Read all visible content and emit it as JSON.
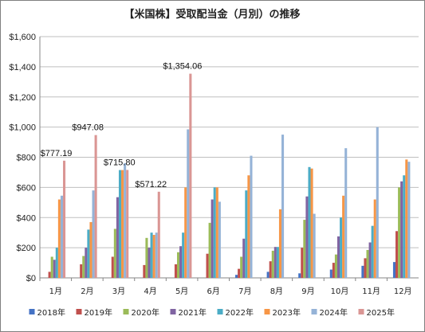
{
  "chart_data": {
    "type": "bar",
    "title": "【米国株】受取配当金（月別）の推移",
    "xlabel": "",
    "ylabel": "",
    "ylim": [
      0,
      1600
    ],
    "yticks": [
      0,
      200,
      400,
      600,
      800,
      1000,
      1200,
      1400,
      1600
    ],
    "ytick_labels": [
      "$0",
      "$200",
      "$400",
      "$600",
      "$800",
      "$1,000",
      "$1,200",
      "$1,400",
      "$1,600"
    ],
    "grid": true,
    "legend_position": "bottom",
    "categories": [
      "1月",
      "2月",
      "3月",
      "4月",
      "5月",
      "6月",
      "7月",
      "8月",
      "9月",
      "10月",
      "11月",
      "12月"
    ],
    "series": [
      {
        "name": "2018年",
        "color": "#4472C4",
        "values": [
          0,
          0,
          0,
          0,
          0,
          0,
          20,
          40,
          30,
          55,
          80,
          105
        ]
      },
      {
        "name": "2019年",
        "color": "#C0504D",
        "values": [
          40,
          90,
          140,
          85,
          90,
          160,
          60,
          110,
          200,
          100,
          130,
          310
        ]
      },
      {
        "name": "2020年",
        "color": "#9BBB59",
        "values": [
          140,
          145,
          325,
          265,
          170,
          365,
          140,
          180,
          385,
          155,
          185,
          600
        ]
      },
      {
        "name": "2021年",
        "color": "#8064A2",
        "values": [
          120,
          200,
          535,
          200,
          210,
          520,
          260,
          205,
          540,
          275,
          235,
          640
        ]
      },
      {
        "name": "2022年",
        "color": "#4BACC6",
        "values": [
          200,
          320,
          715,
          300,
          300,
          600,
          580,
          205,
          735,
          400,
          345,
          680
        ]
      },
      {
        "name": "2023年",
        "color": "#F79646",
        "values": [
          520,
          370,
          715,
          285,
          600,
          600,
          680,
          455,
          725,
          545,
          520,
          785
        ]
      },
      {
        "name": "2024年",
        "color": "#95B3D7",
        "values": [
          545,
          580,
          760,
          300,
          985,
          505,
          810,
          950,
          425,
          860,
          1000,
          770
        ]
      },
      {
        "name": "2025年",
        "color": "#DA9694",
        "values": [
          777.19,
          947.08,
          715.8,
          571.22,
          1354.06,
          null,
          null,
          null,
          null,
          null,
          null,
          null
        ]
      }
    ],
    "data_labels": [
      {
        "series": "2025年",
        "category": "1月",
        "text": "$777.19"
      },
      {
        "series": "2025年",
        "category": "2月",
        "text": "$947.08"
      },
      {
        "series": "2025年",
        "category": "3月",
        "text": "$715.80"
      },
      {
        "series": "2025年",
        "category": "4月",
        "text": "$571.22"
      },
      {
        "series": "2025年",
        "category": "5月",
        "text": "$1,354.06"
      }
    ]
  }
}
